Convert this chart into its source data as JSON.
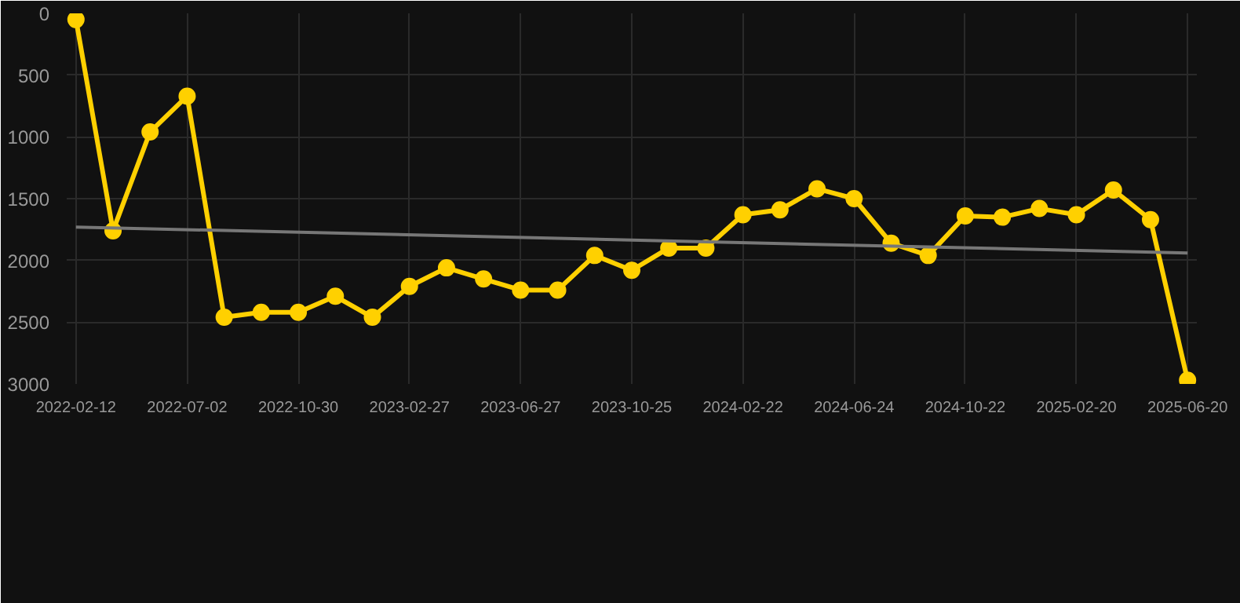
{
  "chart_data": {
    "type": "line",
    "categories": [
      "2022-02-12",
      null,
      null,
      "2022-07-02",
      null,
      null,
      "2022-10-30",
      null,
      null,
      "2023-02-27",
      null,
      null,
      "2023-06-27",
      null,
      null,
      "2023-10-25",
      null,
      null,
      "2024-02-22",
      null,
      null,
      "2024-06-24",
      null,
      null,
      "2024-10-22",
      null,
      null,
      "2025-02-20",
      null,
      null,
      "2025-06-20"
    ],
    "series": [
      {
        "color": "#ffd000",
        "marker": "circle",
        "values": [
          50,
          1760,
          960,
          670,
          2460,
          2420,
          2420,
          2290,
          2460,
          2210,
          2060,
          2150,
          2240,
          2240,
          1960,
          2080,
          1900,
          1900,
          1630,
          1590,
          1420,
          1500,
          1860,
          1960,
          1640,
          1650,
          1580,
          1630,
          1430,
          1670,
          2970
        ]
      },
      {
        "color": "#777777",
        "marker": "none",
        "values": [
          1730,
          null,
          null,
          null,
          null,
          null,
          null,
          null,
          null,
          null,
          null,
          null,
          null,
          null,
          null,
          null,
          null,
          null,
          null,
          null,
          null,
          null,
          null,
          null,
          null,
          null,
          null,
          null,
          null,
          null,
          1940
        ]
      }
    ],
    "ylim": [
      3000,
      0
    ],
    "yticks": [
      0,
      500,
      1000,
      1500,
      2000,
      2500,
      3000
    ],
    "grid": true,
    "line_style": "solid"
  }
}
